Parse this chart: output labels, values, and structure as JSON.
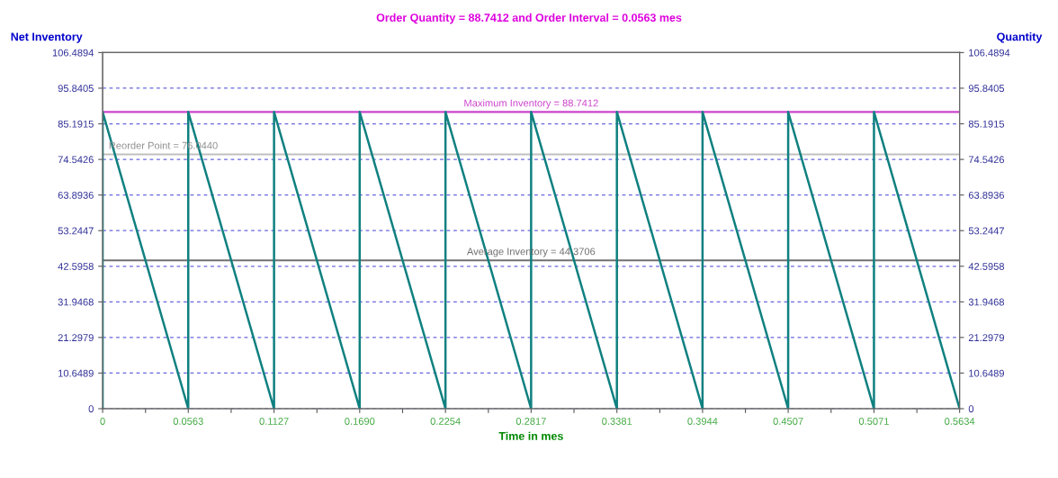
{
  "chart_data": {
    "type": "line",
    "title": "Order Quantity = 88.7412 and Order Interval = 0.0563 mes",
    "xlabel": "Time in mes",
    "ylabel": "Net Inventory",
    "y2label": "Quantity",
    "series": [
      {
        "color": "#108080",
        "x": [
          0,
          0,
          0.0563,
          0.0563,
          0.1127,
          0.1127,
          0.169,
          0.169,
          0.2254,
          0.2254,
          0.2817,
          0.2817,
          0.3381,
          0.3381,
          0.3944,
          0.3944,
          0.4507,
          0.4507,
          0.5071,
          0.5071,
          0.5634
        ],
        "values": [
          0,
          88.7412,
          0,
          88.7412,
          0,
          88.7412,
          0,
          88.7412,
          0,
          88.7412,
          0,
          88.7412,
          0,
          88.7412,
          0,
          88.7412,
          0,
          88.7412,
          0,
          88.7412,
          0
        ]
      }
    ],
    "xlim": [
      0,
      0.5634
    ],
    "ylim": [
      0,
      106.4894
    ],
    "y2lim": [
      0,
      106.4894
    ],
    "xticks": [
      0,
      {
        "value": 0.0282,
        "label": null
      },
      {
        "value": 0.0563,
        "label": "0.0563"
      },
      {
        "value": 0.0845,
        "label": null
      },
      {
        "value": 0.1127,
        "label": "0.1127"
      },
      {
        "value": 0.1409,
        "label": null
      },
      {
        "value": 0.169,
        "label": "0.1690"
      },
      {
        "value": 0.1972,
        "label": null
      },
      {
        "value": 0.2254,
        "label": "0.2254"
      },
      {
        "value": 0.2536,
        "label": null
      },
      {
        "value": 0.2817,
        "label": "0.2817"
      },
      {
        "value": 0.3099,
        "label": null
      },
      {
        "value": 0.3381,
        "label": "0.3381"
      },
      {
        "value": 0.3663,
        "label": null
      },
      {
        "value": 0.3944,
        "label": "0.3944"
      },
      {
        "value": 0.4226,
        "label": null
      },
      {
        "value": 0.4507,
        "label": "0.4507"
      },
      {
        "value": 0.4789,
        "label": null
      },
      {
        "value": 0.5071,
        "label": "0.5071"
      },
      {
        "value": 0.5353,
        "label": null
      },
      {
        "value": 0.5634,
        "label": "0.5634"
      }
    ],
    "yticks": [
      0,
      10.6489,
      21.2979,
      31.9468,
      42.5958,
      53.2447,
      63.8936,
      74.5426,
      85.1915,
      95.8405,
      106.4894
    ],
    "y2ticks": [
      0,
      10.6489,
      21.2979,
      31.9468,
      42.5958,
      53.2447,
      63.8936,
      74.5426,
      85.1915,
      95.8405,
      106.4894
    ],
    "ref_lines": [
      {
        "axis": "y",
        "value": 88.7412,
        "label": "Maximum Inventory = 88.7412",
        "color": "#cc44cc"
      },
      {
        "axis": "y",
        "value": 76.044,
        "label": "Reorder Point = 76.0440",
        "color": "#c0c0c0"
      },
      {
        "axis": "y",
        "value": 44.3706,
        "label": "Average Inventory = 44.3706",
        "color": "#707070"
      }
    ],
    "grid": "y",
    "line_style": "solid",
    "marker": "none"
  }
}
